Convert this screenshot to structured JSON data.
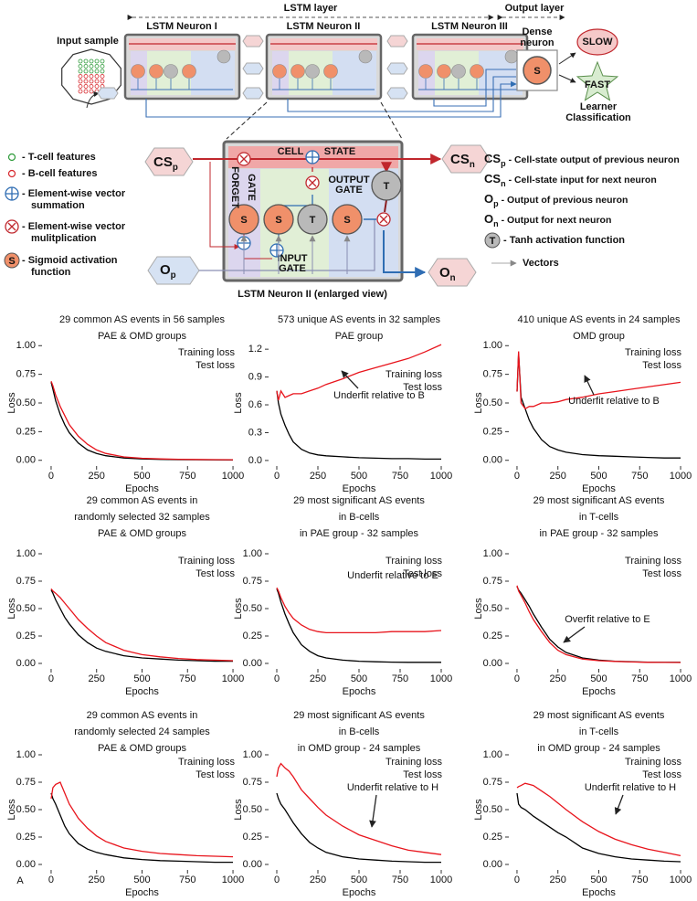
{
  "panel_label": "A",
  "diagram": {
    "layer_labels": [
      "LSTM layer",
      "Output layer"
    ],
    "input_sample": "Input sample",
    "neurons": [
      "LSTM Neuron I",
      "LSTM Neuron II",
      "LSTM Neuron III"
    ],
    "dense_neuron": [
      "Dense",
      "neuron"
    ],
    "dense_symbol": "S",
    "classes": [
      "SLOW",
      "FAST"
    ],
    "classification": [
      "Learner",
      "Classification"
    ],
    "sigmoid_symbol": "S",
    "legend_left": [
      [
        "- T-cell features"
      ],
      [
        "- B-cell features"
      ],
      [
        "- Element-wise vector",
        "summation"
      ],
      [
        "- Element-wise vector",
        "mulitplication"
      ],
      [
        "- Sigmoid activation",
        "function"
      ]
    ],
    "enlarged": {
      "cell_state": [
        "CELL",
        "STATE"
      ],
      "forget_gate": [
        "FORGET",
        "GATE"
      ],
      "input_gate": [
        "INPUT",
        "GATE"
      ],
      "output_gate": [
        "OUTPUT",
        "GATE"
      ],
      "units": [
        "S",
        "S",
        "T",
        "S",
        "T"
      ],
      "cs_prev": {
        "main": "CS",
        "sub": "p"
      },
      "cs_next": {
        "main": "CS",
        "sub": "n"
      },
      "o_prev": {
        "main": "O",
        "sub": "p"
      },
      "o_next": {
        "main": "O",
        "sub": "n"
      },
      "caption": "LSTM Neuron II (enlarged view)"
    },
    "legend_right": [
      {
        "main": "CS",
        "sub": "p",
        "text": "- Cell-state output of previous neuron"
      },
      {
        "main": "CS",
        "sub": "n",
        "text": "- Cell-state input for next neuron"
      },
      {
        "main": "O",
        "sub": "p",
        "text": "- Output of previous neuron"
      },
      {
        "main": "O",
        "sub": "n",
        "text": "- Output for next neuron"
      },
      {
        "symbol": "T",
        "text": "- Tanh activation function"
      },
      {
        "text": "Vectors"
      }
    ]
  },
  "chart_data": [
    {
      "type": "line",
      "title": [
        "29 common AS events in 56 samples",
        "PAE & OMD groups"
      ],
      "xlabel": "Epochs",
      "ylabel": "Loss",
      "x": [
        0,
        10,
        25,
        50,
        75,
        100,
        150,
        200,
        250,
        300,
        400,
        500,
        600,
        700,
        800,
        900,
        1000
      ],
      "xlim": [
        -50,
        1050
      ],
      "xticks": [
        0,
        250,
        500,
        750,
        1000
      ],
      "ylim": [
        -0.05,
        1.05
      ],
      "yticks": [
        {
          "value": 0,
          "label": "0.00"
        },
        {
          "value": 0.25,
          "label": "0.25"
        },
        {
          "value": 0.5,
          "label": "0.50"
        },
        {
          "value": 0.75,
          "label": "0.75"
        },
        {
          "value": 1,
          "label": "1.00"
        }
      ],
      "legend": "upper right",
      "series": [
        {
          "name": "Training loss",
          "color": "#000000",
          "values": [
            0.68,
            0.62,
            0.52,
            0.4,
            0.31,
            0.24,
            0.15,
            0.09,
            0.06,
            0.04,
            0.02,
            0.012,
            0.008,
            0.006,
            0.005,
            0.004,
            0.003
          ]
        },
        {
          "name": "Test loss",
          "color": "#e8141c",
          "values": [
            0.69,
            0.65,
            0.57,
            0.47,
            0.39,
            0.31,
            0.21,
            0.14,
            0.09,
            0.06,
            0.03,
            0.018,
            0.012,
            0.009,
            0.007,
            0.006,
            0.005
          ]
        }
      ]
    },
    {
      "type": "line",
      "title": [
        "573 unique AS events in 32 samples",
        "PAE group"
      ],
      "xlabel": "Epochs",
      "ylabel": "Loss",
      "x": [
        0,
        10,
        25,
        50,
        75,
        100,
        150,
        200,
        250,
        300,
        400,
        500,
        600,
        700,
        800,
        900,
        1000
      ],
      "xlim": [
        -50,
        1050
      ],
      "xticks": [
        0,
        250,
        500,
        750,
        1000
      ],
      "ylim": [
        -0.06,
        1.3
      ],
      "yticks": [
        {
          "value": 0,
          "label": "0.0"
        },
        {
          "value": 0.3,
          "label": "0.3"
        },
        {
          "value": 0.6,
          "label": "0.6"
        },
        {
          "value": 0.9,
          "label": "0.9"
        },
        {
          "value": 1.2,
          "label": "1.2"
        }
      ],
      "legend": "center right",
      "annotation": {
        "text": "Underfit relative to B",
        "color": "#1f77b4"
      },
      "series": [
        {
          "name": "Training loss",
          "color": "#000000",
          "values": [
            0.75,
            0.62,
            0.5,
            0.38,
            0.28,
            0.2,
            0.12,
            0.08,
            0.06,
            0.05,
            0.04,
            0.03,
            0.025,
            0.02,
            0.02,
            0.015,
            0.015
          ]
        },
        {
          "name": "Test loss",
          "color": "#e8141c",
          "values": [
            0.75,
            0.65,
            0.75,
            0.68,
            0.7,
            0.72,
            0.72,
            0.75,
            0.78,
            0.82,
            0.88,
            0.95,
            1.0,
            1.05,
            1.1,
            1.17,
            1.25
          ]
        }
      ]
    },
    {
      "type": "line",
      "title": [
        "410 unique AS events in 24 samples",
        "OMD group"
      ],
      "xlabel": "Epochs",
      "ylabel": "Loss",
      "x": [
        0,
        10,
        25,
        50,
        75,
        100,
        150,
        200,
        250,
        300,
        400,
        500,
        600,
        700,
        800,
        900,
        1000
      ],
      "xlim": [
        -50,
        1050
      ],
      "xticks": [
        0,
        250,
        500,
        750,
        1000
      ],
      "ylim": [
        -0.05,
        1.05
      ],
      "yticks": [
        {
          "value": 0,
          "label": "0.00"
        },
        {
          "value": 0.25,
          "label": "0.25"
        },
        {
          "value": 0.5,
          "label": "0.50"
        },
        {
          "value": 0.75,
          "label": "0.75"
        },
        {
          "value": 1,
          "label": "1.00"
        }
      ],
      "legend": "upper right",
      "annotation": {
        "text": "Underfit relative to B",
        "color": "#1f77b4"
      },
      "series": [
        {
          "name": "Training loss",
          "color": "#000000",
          "values": [
            0.6,
            0.93,
            0.55,
            0.45,
            0.35,
            0.28,
            0.18,
            0.12,
            0.09,
            0.07,
            0.05,
            0.04,
            0.035,
            0.03,
            0.025,
            0.02,
            0.02
          ]
        },
        {
          "name": "Test loss",
          "color": "#e8141c",
          "values": [
            0.6,
            0.95,
            0.5,
            0.45,
            0.47,
            0.47,
            0.5,
            0.5,
            0.51,
            0.53,
            0.55,
            0.58,
            0.6,
            0.62,
            0.64,
            0.66,
            0.68
          ]
        }
      ]
    },
    {
      "type": "line",
      "title": [
        "29 common AS events in",
        "randomly selected 32 samples",
        "PAE & OMD groups"
      ],
      "xlabel": "Epochs",
      "ylabel": "Loss",
      "x": [
        0,
        10,
        25,
        50,
        75,
        100,
        150,
        200,
        250,
        300,
        400,
        500,
        600,
        700,
        800,
        900,
        1000
      ],
      "xlim": [
        -50,
        1050
      ],
      "xticks": [
        0,
        250,
        500,
        750,
        1000
      ],
      "ylim": [
        -0.05,
        1.05
      ],
      "yticks": [
        {
          "value": 0,
          "label": "0.00"
        },
        {
          "value": 0.25,
          "label": "0.25"
        },
        {
          "value": 0.5,
          "label": "0.50"
        },
        {
          "value": 0.75,
          "label": "0.75"
        },
        {
          "value": 1,
          "label": "1.00"
        }
      ],
      "legend": "upper right",
      "series": [
        {
          "name": "Training loss",
          "color": "#000000",
          "values": [
            0.67,
            0.64,
            0.58,
            0.5,
            0.42,
            0.36,
            0.26,
            0.19,
            0.14,
            0.11,
            0.07,
            0.05,
            0.04,
            0.03,
            0.025,
            0.02,
            0.02
          ]
        },
        {
          "name": "Test loss",
          "color": "#e8141c",
          "values": [
            0.68,
            0.66,
            0.64,
            0.6,
            0.55,
            0.5,
            0.4,
            0.32,
            0.25,
            0.19,
            0.12,
            0.08,
            0.06,
            0.045,
            0.035,
            0.03,
            0.025
          ]
        }
      ]
    },
    {
      "type": "line",
      "title": [
        "29 most significant AS events",
        "in B-cells",
        "in PAE group - 32 samples"
      ],
      "xlabel": "Epochs",
      "ylabel": "Loss",
      "x": [
        0,
        10,
        25,
        50,
        75,
        100,
        150,
        200,
        250,
        300,
        400,
        500,
        600,
        700,
        800,
        900,
        1000
      ],
      "xlim": [
        -50,
        1050
      ],
      "xticks": [
        0,
        250,
        500,
        750,
        1000
      ],
      "ylim": [
        -0.05,
        1.05
      ],
      "yticks": [
        {
          "value": 0,
          "label": "0.00"
        },
        {
          "value": 0.25,
          "label": "0.25"
        },
        {
          "value": 0.5,
          "label": "0.50"
        },
        {
          "value": 0.75,
          "label": "0.75"
        },
        {
          "value": 1,
          "label": "1.00"
        }
      ],
      "legend": "upper right",
      "annotation": {
        "text": "Underfit relative to E",
        "color": "#1f77b4"
      },
      "series": [
        {
          "name": "Training loss",
          "color": "#000000",
          "values": [
            0.68,
            0.64,
            0.56,
            0.45,
            0.36,
            0.28,
            0.17,
            0.11,
            0.07,
            0.05,
            0.03,
            0.02,
            0.015,
            0.012,
            0.01,
            0.01,
            0.01
          ]
        },
        {
          "name": "Test loss",
          "color": "#e8141c",
          "values": [
            0.69,
            0.66,
            0.6,
            0.52,
            0.46,
            0.41,
            0.35,
            0.31,
            0.29,
            0.28,
            0.28,
            0.28,
            0.28,
            0.29,
            0.29,
            0.29,
            0.3
          ]
        }
      ]
    },
    {
      "type": "line",
      "title": [
        "29 most significant AS events",
        "in T-cells",
        "in PAE group - 32 samples"
      ],
      "xlabel": "Epochs",
      "ylabel": "Loss",
      "x": [
        0,
        10,
        25,
        50,
        75,
        100,
        150,
        200,
        250,
        300,
        400,
        500,
        600,
        700,
        800,
        900,
        1000
      ],
      "xlim": [
        -50,
        1050
      ],
      "xticks": [
        0,
        250,
        500,
        750,
        1000
      ],
      "ylim": [
        -0.05,
        1.05
      ],
      "yticks": [
        {
          "value": 0,
          "label": "0.00"
        },
        {
          "value": 0.25,
          "label": "0.25"
        },
        {
          "value": 0.5,
          "label": "0.50"
        },
        {
          "value": 0.75,
          "label": "0.75"
        },
        {
          "value": 1,
          "label": "1.00"
        }
      ],
      "legend": "upper right",
      "annotation": {
        "text": "Overfit relative to E",
        "color": "#1f77b4"
      },
      "series": [
        {
          "name": "Training loss",
          "color": "#000000",
          "values": [
            0.7,
            0.67,
            0.64,
            0.58,
            0.52,
            0.45,
            0.33,
            0.22,
            0.15,
            0.1,
            0.05,
            0.03,
            0.02,
            0.015,
            0.012,
            0.01,
            0.01
          ]
        },
        {
          "name": "Test loss",
          "color": "#e8141c",
          "values": [
            0.71,
            0.66,
            0.62,
            0.55,
            0.47,
            0.4,
            0.29,
            0.19,
            0.12,
            0.08,
            0.04,
            0.025,
            0.018,
            0.013,
            0.01,
            0.009,
            0.008
          ]
        }
      ]
    },
    {
      "type": "line",
      "title": [
        "29 common AS events in",
        "randomly selected 24 samples",
        "PAE & OMD groups"
      ],
      "xlabel": "Epochs",
      "ylabel": "Loss",
      "x": [
        0,
        10,
        25,
        50,
        75,
        100,
        150,
        200,
        250,
        300,
        400,
        500,
        600,
        700,
        800,
        900,
        1000
      ],
      "xlim": [
        -50,
        1050
      ],
      "xticks": [
        0,
        250,
        500,
        750,
        1000
      ],
      "ylim": [
        -0.05,
        1.05
      ],
      "yticks": [
        {
          "value": 0,
          "label": "0.00"
        },
        {
          "value": 0.25,
          "label": "0.25"
        },
        {
          "value": 0.5,
          "label": "0.50"
        },
        {
          "value": 0.75,
          "label": "0.75"
        },
        {
          "value": 1,
          "label": "1.00"
        }
      ],
      "legend": "upper right",
      "series": [
        {
          "name": "Training loss",
          "color": "#000000",
          "values": [
            0.65,
            0.6,
            0.55,
            0.45,
            0.35,
            0.28,
            0.19,
            0.14,
            0.11,
            0.09,
            0.06,
            0.045,
            0.035,
            0.03,
            0.025,
            0.02,
            0.02
          ]
        },
        {
          "name": "Test loss",
          "color": "#e8141c",
          "values": [
            0.6,
            0.7,
            0.73,
            0.75,
            0.65,
            0.55,
            0.42,
            0.33,
            0.26,
            0.21,
            0.15,
            0.12,
            0.1,
            0.09,
            0.08,
            0.075,
            0.07
          ]
        }
      ]
    },
    {
      "type": "line",
      "title": [
        "29 most significant AS events",
        "in B-cells",
        "in OMD group - 24 samples"
      ],
      "xlabel": "Epochs",
      "ylabel": "Loss",
      "x": [
        0,
        10,
        25,
        50,
        75,
        100,
        150,
        200,
        250,
        300,
        400,
        500,
        600,
        700,
        800,
        900,
        1000
      ],
      "xlim": [
        -50,
        1050
      ],
      "xticks": [
        0,
        250,
        500,
        750,
        1000
      ],
      "ylim": [
        -0.05,
        1.05
      ],
      "yticks": [
        {
          "value": 0,
          "label": "0.00"
        },
        {
          "value": 0.25,
          "label": "0.25"
        },
        {
          "value": 0.5,
          "label": "0.50"
        },
        {
          "value": 0.75,
          "label": "0.75"
        },
        {
          "value": 1,
          "label": "1.00"
        }
      ],
      "legend": "upper right",
      "annotation": {
        "text": "Underfit relative to H",
        "color": "#1f77b4"
      },
      "series": [
        {
          "name": "Training loss",
          "color": "#000000",
          "values": [
            0.65,
            0.6,
            0.55,
            0.5,
            0.44,
            0.38,
            0.28,
            0.2,
            0.15,
            0.11,
            0.07,
            0.05,
            0.04,
            0.03,
            0.025,
            0.02,
            0.02
          ]
        },
        {
          "name": "Test loss",
          "color": "#e8141c",
          "values": [
            0.8,
            0.88,
            0.92,
            0.88,
            0.85,
            0.8,
            0.68,
            0.6,
            0.52,
            0.45,
            0.35,
            0.27,
            0.22,
            0.17,
            0.13,
            0.11,
            0.09
          ]
        }
      ]
    },
    {
      "type": "line",
      "title": [
        "29 most significant AS events",
        "in T-cells",
        "in OMD group - 24 samples"
      ],
      "xlabel": "Epochs",
      "ylabel": "Loss",
      "x": [
        0,
        10,
        25,
        50,
        75,
        100,
        150,
        200,
        250,
        300,
        400,
        500,
        600,
        700,
        800,
        900,
        1000
      ],
      "xlim": [
        -50,
        1050
      ],
      "xticks": [
        0,
        250,
        500,
        750,
        1000
      ],
      "ylim": [
        -0.05,
        1.05
      ],
      "yticks": [
        {
          "value": 0,
          "label": "0.00"
        },
        {
          "value": 0.25,
          "label": "0.25"
        },
        {
          "value": 0.5,
          "label": "0.50"
        },
        {
          "value": 0.75,
          "label": "0.75"
        },
        {
          "value": 1,
          "label": "1.00"
        }
      ],
      "legend": "upper right",
      "annotation": {
        "text": "Underfit relative to H",
        "color": "#1f77b4"
      },
      "series": [
        {
          "name": "Training loss",
          "color": "#000000",
          "values": [
            0.65,
            0.55,
            0.52,
            0.5,
            0.47,
            0.44,
            0.39,
            0.34,
            0.29,
            0.25,
            0.15,
            0.1,
            0.07,
            0.05,
            0.04,
            0.03,
            0.025
          ]
        },
        {
          "name": "Test loss",
          "color": "#e8141c",
          "values": [
            0.7,
            0.71,
            0.72,
            0.74,
            0.73,
            0.72,
            0.67,
            0.62,
            0.56,
            0.5,
            0.39,
            0.3,
            0.23,
            0.18,
            0.14,
            0.11,
            0.08
          ]
        }
      ]
    }
  ]
}
